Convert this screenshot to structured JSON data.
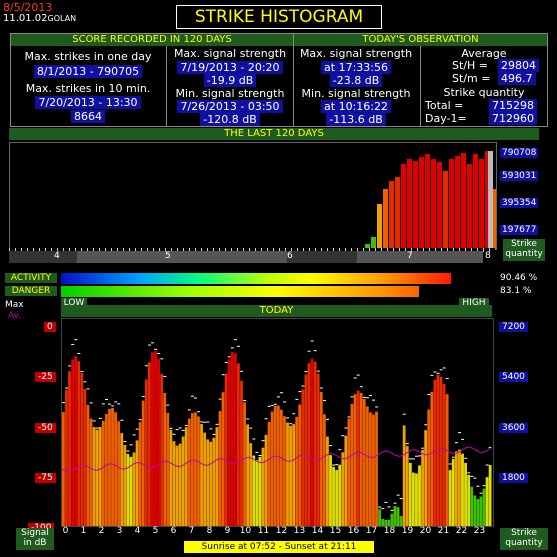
{
  "header": {
    "date": "8/5/2013",
    "time": "11.01.02",
    "location": "GOLAN",
    "title": "STRIKE HISTOGRAM"
  },
  "score_panel": {
    "title": "SCORE RECORDED IN 120 DAYS",
    "max_one_day_label": "Max. strikes in one day",
    "max_one_day_value": "8/1/2013 - 790705",
    "max_10min_label": "Max. strikes in 10 min.",
    "max_10min_date": "7/20/2013 - 13:30",
    "max_10min_value": "8664",
    "max_signal_label": "Max. signal strength",
    "max_signal_date": "7/19/2013 - 20:20",
    "max_signal_value": "-19.9 dB",
    "min_signal_label": "Min. signal strength",
    "min_signal_date": "7/26/2013 - 03:50",
    "min_signal_value": "-120.8 dB"
  },
  "today_panel": {
    "title": "TODAY'S OBSERVATION",
    "max_signal_label": "Max. signal strength",
    "max_signal_time": "at 17:33:56",
    "max_signal_value": "-23.8 dB",
    "min_signal_label": "Min. signal strength",
    "min_signal_time": "at 10:16:22",
    "min_signal_value": "-113.6 dB",
    "average_label": "Average",
    "sth_label": "St/H =",
    "sth_value": "29804",
    "stm_label": "St/m =",
    "stm_value": "496.7",
    "quantity_label": "Strike quantity",
    "total_label": "Total  =",
    "total_value": "715298",
    "day1_label": "Day-1=",
    "day1_value": "712960"
  },
  "last120": {
    "title": "THE LAST 120 DAYS",
    "scale": [
      "790708",
      "593031",
      "395354",
      "197677"
    ],
    "months": [
      "4",
      "5",
      "6",
      "7",
      "8"
    ],
    "side_label": "Strike quantity"
  },
  "meters": {
    "activity_label": "ACTIVITY",
    "activity_value": "90.46 %",
    "activity_fraction": 0.9046,
    "danger_label": "DANGER",
    "danger_value": "83.1 %",
    "danger_fraction": 0.831,
    "low_label": "LOW",
    "high_label": "HIGH"
  },
  "today_chart": {
    "title": "TODAY",
    "max_label": "Max",
    "av_label": "Av.",
    "left_scale": [
      "0",
      "-25",
      "-50",
      "-75",
      "-100"
    ],
    "right_scale": [
      "7200",
      "5400",
      "3600",
      "1800"
    ],
    "hours": [
      "0",
      "1",
      "2",
      "3",
      "4",
      "5",
      "6",
      "7",
      "8",
      "9",
      "10",
      "11",
      "12",
      "13",
      "14",
      "15",
      "16",
      "17",
      "18",
      "19",
      "20",
      "21",
      "22",
      "23"
    ],
    "left_side_label": "Signal in dB",
    "right_side_label": "Strike quantity",
    "sun_info": "Sunrise at 07:52  -  Sunset at 21:11"
  },
  "colors": {
    "panel_title_bg": "#1f5a1f",
    "title_text": "#ffff00",
    "value_bg": "#1010a0",
    "scale_red": "#c00000"
  }
}
